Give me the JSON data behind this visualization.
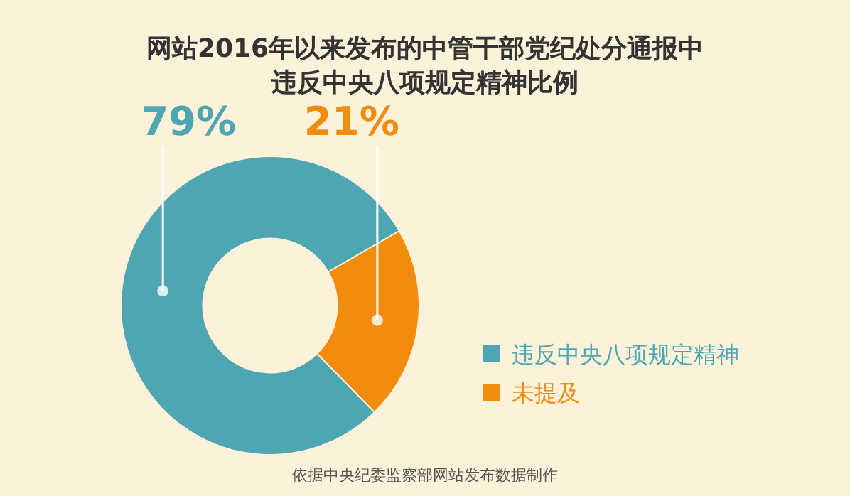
{
  "chart_data": {
    "type": "donut",
    "title": "网站2016年以来发布的中管干部党纪处分通报中",
    "subtitle": "违反中央八项规定精神比例",
    "categories": [
      "违反中央八项规定精神",
      "未提及"
    ],
    "values": [
      79,
      21
    ],
    "colors": [
      "#4fa6b3",
      "#f28c0f"
    ],
    "value_labels": [
      "79%",
      "21%"
    ],
    "legend": "bottom right",
    "annotations": [
      "依据中央纪委监察部网站发布数据制作"
    ]
  }
}
